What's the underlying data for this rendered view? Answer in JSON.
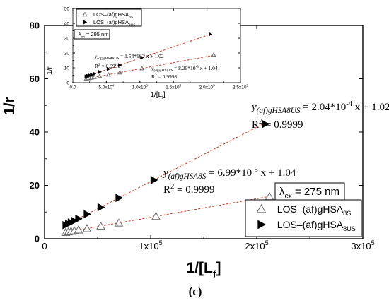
{
  "panel_label": "(c)",
  "chart_data": [
    {
      "id": "main",
      "type": "scatter",
      "xlabel": "1/[L",
      "xlabel_sub": "f",
      "xlabel_close": "]",
      "ylabel": "1/r",
      "xlim": [
        0,
        300000
      ],
      "ylim": [
        0,
        80
      ],
      "x_ticks": [
        {
          "value": 0,
          "mant": "0",
          "exp": ""
        },
        {
          "value": 100000,
          "mant": "1x10",
          "exp": "5"
        },
        {
          "value": 200000,
          "mant": "2x10",
          "exp": "5"
        },
        {
          "value": 300000,
          "mant": "3x10",
          "exp": "5"
        }
      ],
      "y_ticks": [
        0,
        20,
        40,
        60,
        80
      ],
      "grid": false,
      "excitation": {
        "prefix": "λ",
        "sub": "ex",
        "text": " = 275 nm"
      },
      "legend": {
        "position": "lower-right",
        "entries": [
          {
            "marker": "open-triangle-up",
            "prefix": "LOS–(af)gHSA",
            "sub": "8S"
          },
          {
            "marker": "filled-triangle-right",
            "prefix": "LOS–(af)gHSA",
            "sub": "8US"
          }
        ]
      },
      "series": [
        {
          "name": "LOS–(af)gHSA8S",
          "marker": "open-triangle-up",
          "color": "#666666",
          "fit_color": "#c0392b",
          "slope": 6.99e-05,
          "intercept": 1.04,
          "fit_x": [
            20000,
            212000
          ],
          "x": [
            20000,
            22500,
            25000,
            28000,
            32000,
            40000,
            53000,
            70000,
            105000,
            212000
          ],
          "y": [
            2.4,
            2.6,
            2.8,
            3.0,
            3.3,
            3.8,
            4.7,
            5.9,
            8.4,
            15.8
          ],
          "equation": {
            "lhs": "y",
            "lhs_sub": "(af)gHSA8S",
            "rhs": " = 6.99*10",
            "rhs_exp": "-5",
            "rhs_tail": " x + 1.04"
          },
          "r2": {
            "text": "R",
            "exp": "2",
            "tail": " = 0.9999"
          }
        },
        {
          "name": "LOS–(af)gHSA8US",
          "marker": "filled-triangle-right",
          "color": "#000000",
          "fit_color": "#c0392b",
          "slope": 0.000204,
          "intercept": 1.02,
          "fit_x": [
            20000,
            208000
          ],
          "x": [
            20000,
            22500,
            25000,
            28000,
            32000,
            40000,
            53000,
            70000,
            103000,
            208000
          ],
          "y": [
            5.1,
            5.6,
            6.1,
            6.7,
            7.5,
            9.2,
            11.8,
            15.3,
            22.0,
            43.0
          ],
          "equation": {
            "lhs": "y",
            "lhs_sub": "(af)gHSA8US",
            "rhs": " = 2.04*10",
            "rhs_exp": "-4",
            "rhs_tail": " x + 1.02"
          },
          "r2": {
            "text": "R",
            "exp": "2",
            "tail": " = 0.9999"
          }
        }
      ]
    },
    {
      "id": "inset",
      "type": "scatter",
      "xlabel": "1/[L",
      "xlabel_sub": "f",
      "xlabel_close": "]",
      "ylabel": "1/r",
      "xlim": [
        0,
        250000
      ],
      "ylim": [
        0,
        50
      ],
      "x_ticks": [
        {
          "value": 0,
          "mant": "0.0",
          "exp": ""
        },
        {
          "value": 50000,
          "mant": "5.0x10",
          "exp": "4"
        },
        {
          "value": 100000,
          "mant": "1.0x10",
          "exp": "5"
        },
        {
          "value": 150000,
          "mant": "1.5x10",
          "exp": "5"
        },
        {
          "value": 200000,
          "mant": "2.0x10",
          "exp": "5"
        },
        {
          "value": 250000,
          "mant": "2.5x10",
          "exp": "5"
        }
      ],
      "y_ticks": [
        0,
        10,
        20,
        30,
        40,
        50
      ],
      "grid": false,
      "excitation": {
        "prefix": "λ",
        "sub": "ex",
        "text": " = 295 nm"
      },
      "legend": {
        "position": "top-left",
        "entries": [
          {
            "marker": "open-triangle-up",
            "prefix": "LOS–(af)gHSA",
            "sub": "8S"
          },
          {
            "marker": "filled-triangle-right",
            "prefix": "LOS–(af)gHSA",
            "sub": "8US"
          }
        ]
      },
      "series": [
        {
          "name": "LOS–(af)gHSA8S",
          "marker": "open-triangle-up",
          "color": "#666666",
          "fit_color": "#c0392b",
          "slope": 8.29e-05,
          "intercept": 1.04,
          "fit_x": [
            20000,
            210000
          ],
          "x": [
            20000,
            22500,
            25000,
            28000,
            32000,
            40000,
            53000,
            70000,
            103000,
            210000
          ],
          "y": [
            2.7,
            2.9,
            3.1,
            3.4,
            3.7,
            4.4,
            5.4,
            6.8,
            9.6,
            18.7
          ],
          "equation": {
            "lhs": "y",
            "lhs_sub": "(af)gHSA8S",
            "rhs": " = 8.29*10",
            "rhs_exp": "-5",
            "rhs_tail": " x + 1.04"
          },
          "r2": {
            "text": "R",
            "exp": "2",
            "tail": " = 0.9998"
          }
        },
        {
          "name": "LOS–(af)gHSA8US",
          "marker": "filled-triangle-right",
          "color": "#000000",
          "fit_color": "#c0392b",
          "slope": 0.000154,
          "intercept": 1.02,
          "fit_x": [
            20000,
            205000
          ],
          "x": [
            20000,
            22500,
            25000,
            28000,
            32000,
            40000,
            53000,
            70000,
            103000,
            205000
          ],
          "y": [
            4.1,
            4.5,
            4.9,
            5.3,
            6.0,
            7.2,
            9.2,
            11.8,
            16.9,
            32.6
          ],
          "equation": {
            "lhs": "y",
            "lhs_sub": "(af)gHSA8US",
            "rhs": " = 1.54*10",
            "rhs_exp": "-4",
            "rhs_tail": " x + 1.02"
          },
          "r2": {
            "text": "R",
            "exp": "2",
            "tail": " = 0.9999"
          }
        }
      ]
    }
  ]
}
